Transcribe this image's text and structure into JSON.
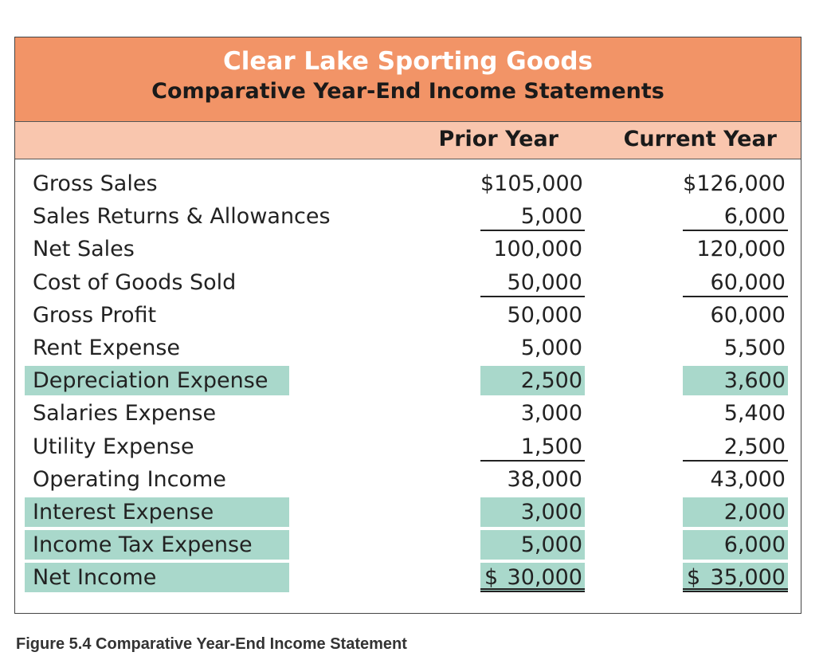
{
  "statement": {
    "company": "Clear Lake Sporting Goods",
    "subtitle": "Comparative Year-End Income Statements",
    "columns": {
      "prior": "Prior Year",
      "current": "Current Year"
    },
    "rows": [
      {
        "label": "Gross Sales",
        "prior": "$105,000",
        "current": "$126,000",
        "highlight": false,
        "underline": "none"
      },
      {
        "label": "Sales Returns & Allowances",
        "prior": "5,000",
        "current": "6,000",
        "highlight": false,
        "underline": "single"
      },
      {
        "label": "Net Sales",
        "prior": "100,000",
        "current": "120,000",
        "highlight": false,
        "underline": "none"
      },
      {
        "label": "Cost of Goods Sold",
        "prior": "50,000",
        "current": "60,000",
        "highlight": false,
        "underline": "single"
      },
      {
        "label": "Gross Profit",
        "prior": "50,000",
        "current": "60,000",
        "highlight": false,
        "underline": "none"
      },
      {
        "label": "Rent Expense",
        "prior": "5,000",
        "current": "5,500",
        "highlight": false,
        "underline": "none"
      },
      {
        "label": "Depreciation Expense",
        "prior": "2,500",
        "current": "3,600",
        "highlight": true,
        "underline": "none"
      },
      {
        "label": "Salaries Expense",
        "prior": "3,000",
        "current": "5,400",
        "highlight": false,
        "underline": "none"
      },
      {
        "label": "Utility Expense",
        "prior": "1,500",
        "current": "2,500",
        "highlight": false,
        "underline": "single"
      },
      {
        "label": "Operating Income",
        "prior": "38,000",
        "current": "43,000",
        "highlight": false,
        "underline": "none"
      },
      {
        "label": "Interest Expense",
        "prior": "3,000",
        "current": "2,000",
        "highlight": true,
        "underline": "none"
      },
      {
        "label": "Income Tax Expense",
        "prior": "5,000",
        "current": "6,000",
        "highlight": true,
        "underline": "none"
      },
      {
        "label": "Net Income",
        "prior": "30,000",
        "current": "35,000",
        "highlight": true,
        "underline": "double",
        "currency": "$"
      }
    ]
  },
  "caption": "Figure 5.4 Comparative Year-End Income Statement",
  "colors": {
    "title_band": "#F29467",
    "header_band": "#F9C6AE",
    "highlight": "#A9D8CB",
    "title_text": "#ffffff"
  }
}
